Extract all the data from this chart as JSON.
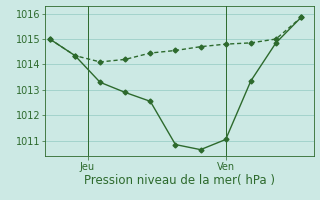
{
  "line1_x": [
    0,
    1,
    2,
    3,
    4,
    5,
    6,
    7,
    8,
    9,
    10
  ],
  "line1_y": [
    1015.0,
    1014.35,
    1013.3,
    1012.9,
    1012.55,
    1010.85,
    1010.65,
    1011.05,
    1013.35,
    1014.85,
    1015.85
  ],
  "line2_x": [
    0,
    1,
    2,
    3,
    4,
    5,
    6,
    7,
    8,
    9,
    10
  ],
  "line2_y": [
    1015.0,
    1014.35,
    1014.1,
    1014.2,
    1014.45,
    1014.55,
    1014.7,
    1014.8,
    1014.85,
    1015.0,
    1015.85
  ],
  "line_color": "#2d6a2d",
  "bg_color": "#cce9e4",
  "grid_color": "#9dcfc8",
  "xlabel": "Pression niveau de la mer( hPa )",
  "ylim": [
    1010.4,
    1016.3
  ],
  "yticks": [
    1011,
    1012,
    1013,
    1014,
    1015,
    1016
  ],
  "xlim": [
    -0.2,
    10.5
  ],
  "xtick_positions": [
    1.5,
    7.0
  ],
  "xtick_labels": [
    "Jeu",
    "Ven"
  ],
  "markersize": 2.5,
  "linewidth": 1.0,
  "xlabel_fontsize": 8.5,
  "tick_fontsize": 7.0
}
